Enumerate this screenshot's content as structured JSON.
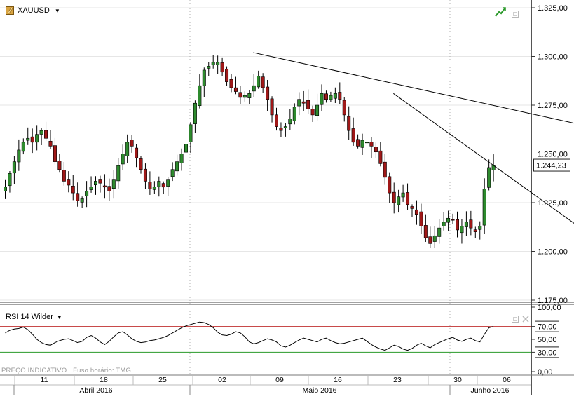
{
  "header": {
    "symbol": "XAUUSD",
    "dropdown_caret": "▼",
    "symbol_icon": "gold-bar-icon"
  },
  "price_panel": {
    "current_price_label": "1.244,23",
    "colors": {
      "up_candle": "#2e8b2e",
      "down_candle": "#a01818",
      "wick": "#000000",
      "price_line": "#cc0000",
      "trendline": "#000000",
      "grid": "#e6e6e6"
    }
  },
  "rsi_panel": {
    "title": "RSI 14 Wilder",
    "dropdown_caret": "▼",
    "overbought": 70,
    "oversold": 30,
    "overbought_label": "70,00",
    "oversold_label": "30,00",
    "overbought_color": "#c03030",
    "oversold_color": "#2a9a2a"
  },
  "footer": {
    "price_note": "PREÇO INDICATIVO",
    "timezone_note": "Fuso horário: TMG"
  },
  "chart_data": [
    {
      "type": "candlestick",
      "title": "",
      "y_ticks": [
        "1.325,00",
        "1.300,00",
        "1.275,00",
        "1.250,00",
        "1.225,00",
        "1.200,00",
        "1.175,00"
      ],
      "y_tick_values": [
        1325,
        1300,
        1275,
        1250,
        1225,
        1200,
        1175
      ],
      "ylim": [
        1175,
        1325
      ],
      "x_day_ticks": [
        "11",
        "18",
        "25",
        "02",
        "09",
        "16",
        "23",
        "30",
        "06"
      ],
      "x_month_labels": [
        "Abril 2016",
        "Maio 2016",
        "Junho 2016"
      ],
      "last_price": 1244.23,
      "series_close": [
        1233,
        1240,
        1246,
        1252,
        1256,
        1258,
        1256,
        1260,
        1262,
        1258,
        1254,
        1246,
        1242,
        1236,
        1234,
        1230,
        1226,
        1227,
        1231,
        1233,
        1236,
        1235,
        1233,
        1231,
        1237,
        1244,
        1250,
        1256,
        1254,
        1248,
        1242,
        1236,
        1232,
        1233,
        1236,
        1233,
        1237,
        1242,
        1246,
        1250,
        1255,
        1265,
        1276,
        1285,
        1293,
        1295,
        1297,
        1297,
        1292,
        1287,
        1284,
        1282,
        1279,
        1280,
        1281,
        1285,
        1290,
        1284,
        1278,
        1270,
        1264,
        1262,
        1264,
        1268,
        1274,
        1278,
        1276,
        1273,
        1270,
        1275,
        1281,
        1278,
        1280,
        1281,
        1278,
        1270,
        1262,
        1256,
        1254,
        1257,
        1256,
        1254,
        1251,
        1245,
        1238,
        1230,
        1225,
        1228,
        1230,
        1224,
        1222,
        1219,
        1213,
        1207,
        1204,
        1208,
        1212,
        1215,
        1217,
        1216,
        1211,
        1213,
        1215,
        1212,
        1210,
        1213,
        1232,
        1243,
        1244.23
      ],
      "trendlines": [
        {
          "from": {
            "x": "2016-04-29",
            "y": 1302
          },
          "to": {
            "x": "2016-06-07",
            "y": 1254.5
          }
        },
        {
          "from": {
            "x": "2016-05-12",
            "y": 1281
          },
          "to": {
            "x": "2016-06-01",
            "y": 1201.5
          }
        }
      ]
    },
    {
      "type": "line",
      "title": "RSI 14 Wilder",
      "y_ticks": [
        "100,00",
        "70,00",
        "50,00",
        "30,00",
        "0,00"
      ],
      "y_tick_values": [
        100,
        70,
        50,
        30,
        0
      ],
      "ylim": [
        0,
        100
      ],
      "series": [
        {
          "name": "RSI 14 Wilder",
          "values": [
            60,
            64,
            66,
            67,
            69,
            65,
            58,
            50,
            45,
            42,
            41,
            45,
            48,
            50,
            51,
            48,
            45,
            47,
            53,
            56,
            52,
            46,
            42,
            47,
            54,
            60,
            62,
            57,
            51,
            47,
            45,
            46,
            48,
            49,
            51,
            53,
            56,
            60,
            64,
            68,
            71,
            73,
            75,
            77,
            76,
            73,
            68,
            61,
            57,
            56,
            58,
            62,
            60,
            54,
            46,
            43,
            45,
            48,
            51,
            49,
            46,
            40,
            38,
            41,
            45,
            49,
            52,
            50,
            48,
            46,
            50,
            52,
            48,
            45,
            43,
            44,
            46,
            48,
            50,
            52,
            47,
            42,
            38,
            35,
            33,
            37,
            41,
            39,
            35,
            33,
            36,
            41,
            44,
            40,
            37,
            42,
            45,
            48,
            51,
            53,
            49,
            47,
            50,
            52,
            48,
            46,
            58,
            68,
            70
          ]
        }
      ]
    }
  ]
}
